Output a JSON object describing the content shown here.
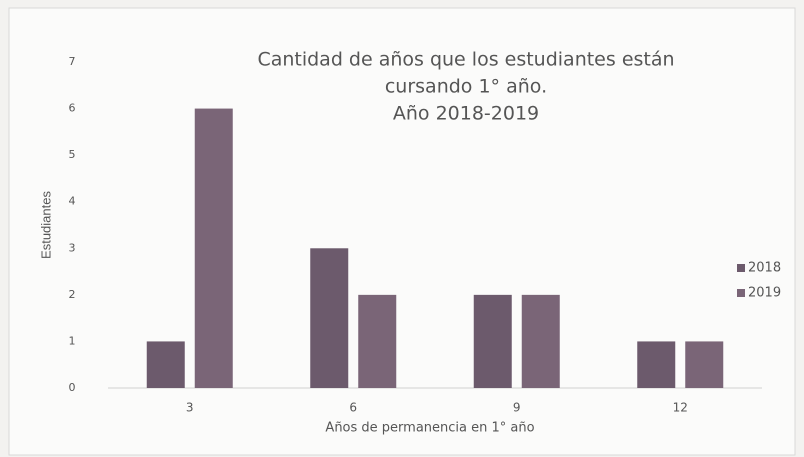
{
  "chart_data": {
    "type": "bar",
    "title": [
      "Cantidad de años que los estudiantes están",
      "cursando 1° año.",
      "Año 2018-2019"
    ],
    "x_label": "Años de permanencia en 1° año",
    "y_label": "Estudiantes",
    "categories": [
      "3",
      "6",
      "9",
      "12"
    ],
    "series": [
      {
        "name": "2018",
        "color": "#6c5a6c",
        "values": [
          1,
          3,
          2,
          1
        ]
      },
      {
        "name": "2019",
        "color": "#7a6577",
        "values": [
          6,
          2,
          2,
          1
        ]
      }
    ],
    "ylim": [
      0,
      7
    ],
    "yticks": [
      0,
      1,
      2,
      3,
      4,
      5,
      6,
      7
    ],
    "grid": false,
    "legend": "right"
  }
}
